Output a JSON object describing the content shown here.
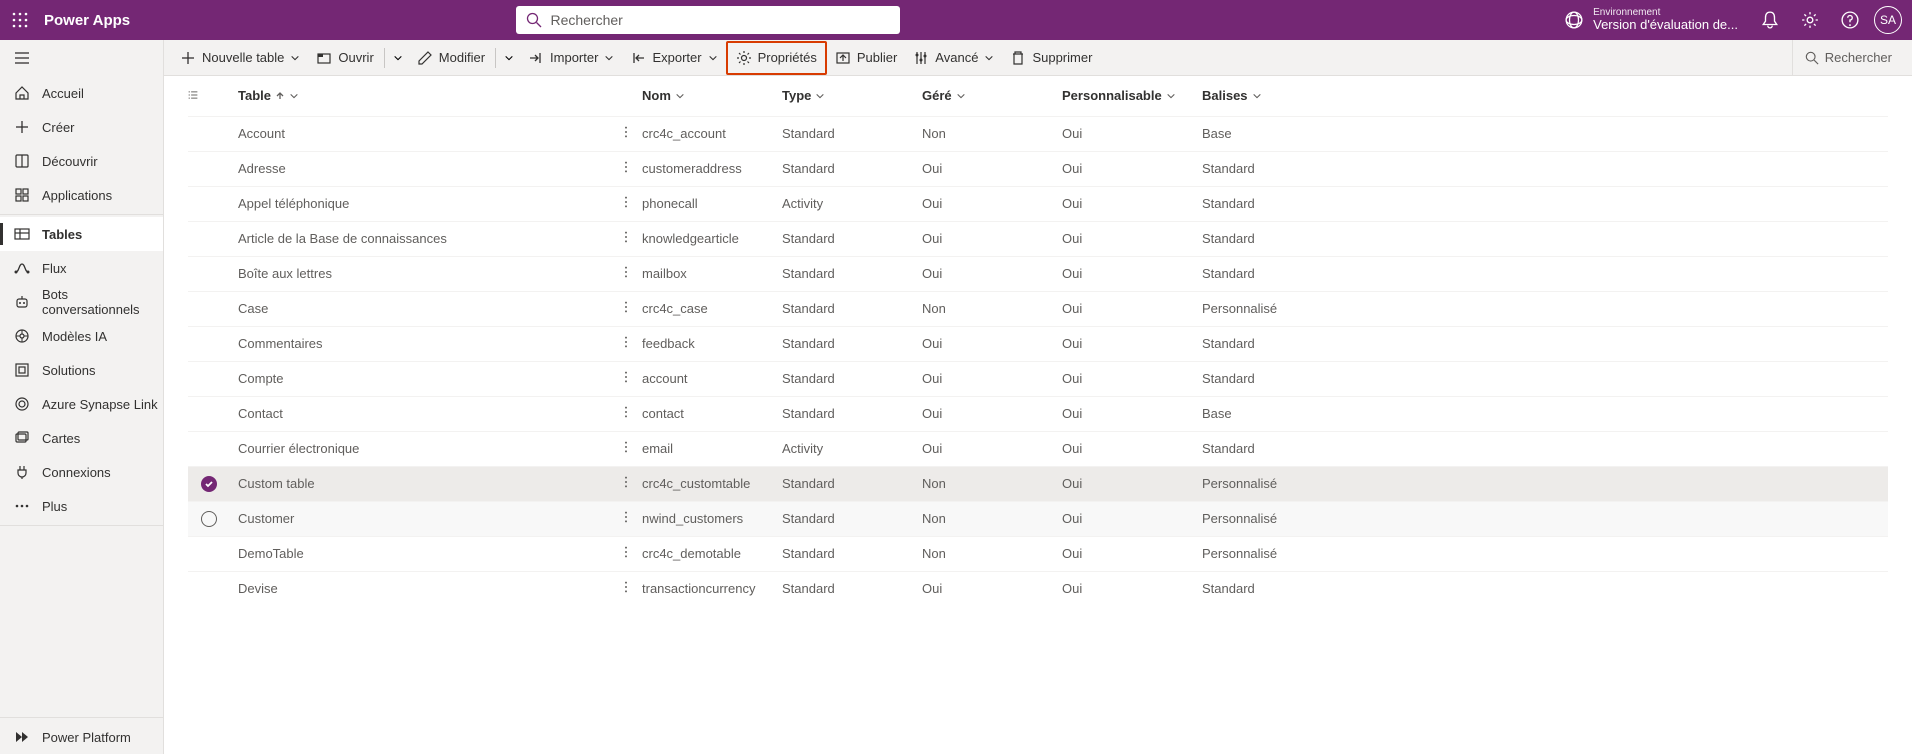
{
  "header": {
    "app_title": "Power Apps",
    "search_placeholder": "Rechercher",
    "env_label": "Environnement",
    "env_name": "Version d'évaluation de...",
    "avatar_initials": "SA"
  },
  "sidebar": {
    "items": [
      {
        "label": "Accueil",
        "icon": "home"
      },
      {
        "label": "Créer",
        "icon": "plus"
      },
      {
        "label": "Découvrir",
        "icon": "book"
      },
      {
        "label": "Applications",
        "icon": "apps"
      },
      {
        "label": "Tables",
        "icon": "table",
        "active": true
      },
      {
        "label": "Flux",
        "icon": "flow"
      },
      {
        "label": "Bots conversationnels",
        "icon": "bot"
      },
      {
        "label": "Modèles IA",
        "icon": "ai"
      },
      {
        "label": "Solutions",
        "icon": "solutions"
      },
      {
        "label": "Azure Synapse Link",
        "icon": "synapse"
      },
      {
        "label": "Cartes",
        "icon": "cards"
      },
      {
        "label": "Connexions",
        "icon": "plug"
      },
      {
        "label": "Plus",
        "icon": "more"
      }
    ],
    "footer_label": "Power Platform"
  },
  "toolbar": {
    "new_table": "Nouvelle table",
    "open": "Ouvrir",
    "modify": "Modifier",
    "import": "Importer",
    "export": "Exporter",
    "properties": "Propriétés",
    "publish": "Publier",
    "advanced": "Avancé",
    "delete": "Supprimer",
    "search": "Rechercher"
  },
  "columns": {
    "table": "Table",
    "nom": "Nom",
    "type": "Type",
    "gere": "Géré",
    "perso": "Personnalisable",
    "balises": "Balises"
  },
  "rows": [
    {
      "table": "Account",
      "nom": "crc4c_account",
      "type": "Standard",
      "gere": "Non",
      "perso": "Oui",
      "balises": "Base"
    },
    {
      "table": "Adresse",
      "nom": "customeraddress",
      "type": "Standard",
      "gere": "Oui",
      "perso": "Oui",
      "balises": "Standard"
    },
    {
      "table": "Appel téléphonique",
      "nom": "phonecall",
      "type": "Activity",
      "gere": "Oui",
      "perso": "Oui",
      "balises": "Standard"
    },
    {
      "table": "Article de la Base de connaissances",
      "nom": "knowledgearticle",
      "type": "Standard",
      "gere": "Oui",
      "perso": "Oui",
      "balises": "Standard"
    },
    {
      "table": "Boîte aux lettres",
      "nom": "mailbox",
      "type": "Standard",
      "gere": "Oui",
      "perso": "Oui",
      "balises": "Standard"
    },
    {
      "table": "Case",
      "nom": "crc4c_case",
      "type": "Standard",
      "gere": "Non",
      "perso": "Oui",
      "balises": "Personnalisé"
    },
    {
      "table": "Commentaires",
      "nom": "feedback",
      "type": "Standard",
      "gere": "Oui",
      "perso": "Oui",
      "balises": "Standard"
    },
    {
      "table": "Compte",
      "nom": "account",
      "type": "Standard",
      "gere": "Oui",
      "perso": "Oui",
      "balises": "Standard"
    },
    {
      "table": "Contact",
      "nom": "contact",
      "type": "Standard",
      "gere": "Oui",
      "perso": "Oui",
      "balises": "Base"
    },
    {
      "table": "Courrier électronique",
      "nom": "email",
      "type": "Activity",
      "gere": "Oui",
      "perso": "Oui",
      "balises": "Standard"
    },
    {
      "table": "Custom table",
      "nom": "crc4c_customtable",
      "type": "Standard",
      "gere": "Non",
      "perso": "Oui",
      "balises": "Personnalisé",
      "selected": true
    },
    {
      "table": "Customer",
      "nom": "nwind_customers",
      "type": "Standard",
      "gere": "Non",
      "perso": "Oui",
      "balises": "Personnalisé",
      "hovered": true
    },
    {
      "table": "DemoTable",
      "nom": "crc4c_demotable",
      "type": "Standard",
      "gere": "Non",
      "perso": "Oui",
      "balises": "Personnalisé"
    },
    {
      "table": "Devise",
      "nom": "transactioncurrency",
      "type": "Standard",
      "gere": "Oui",
      "perso": "Oui",
      "balises": "Standard"
    }
  ]
}
